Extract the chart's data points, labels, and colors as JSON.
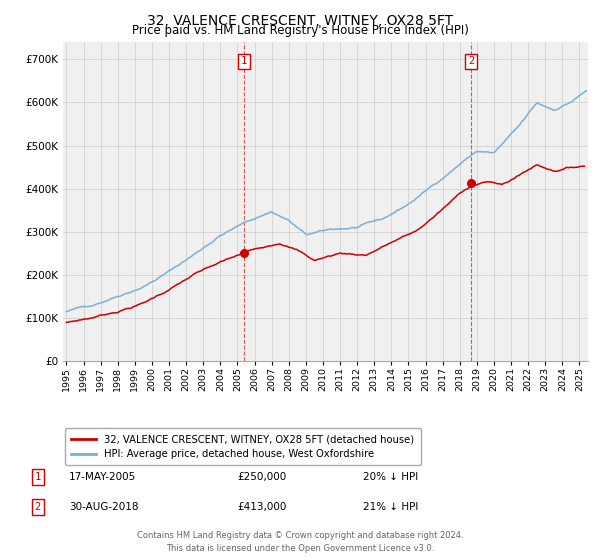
{
  "title": "32, VALENCE CRESCENT, WITNEY, OX28 5FT",
  "subtitle": "Price paid vs. HM Land Registry's House Price Index (HPI)",
  "title_fontsize": 10,
  "subtitle_fontsize": 8.5,
  "ytick_vals": [
    0,
    100000,
    200000,
    300000,
    400000,
    500000,
    600000,
    700000
  ],
  "ylim": [
    0,
    740000
  ],
  "xlim_start": 1994.8,
  "xlim_end": 2025.5,
  "xtick_years": [
    1995,
    1996,
    1997,
    1998,
    1999,
    2000,
    2001,
    2002,
    2003,
    2004,
    2005,
    2006,
    2007,
    2008,
    2009,
    2010,
    2011,
    2012,
    2013,
    2014,
    2015,
    2016,
    2017,
    2018,
    2019,
    2020,
    2021,
    2022,
    2023,
    2024,
    2025
  ],
  "purchase1_x": 2005.38,
  "purchase1_y": 250000,
  "purchase2_x": 2018.66,
  "purchase2_y": 413000,
  "vline1_x": 2005.38,
  "vline2_x": 2018.66,
  "marker_color": "#cc0000",
  "hpi_color": "#7bafd4",
  "price_color": "#cc0000",
  "grid_color": "#cccccc",
  "background_color": "#f0f0f0",
  "legend_label_red": "32, VALENCE CRESCENT, WITNEY, OX28 5FT (detached house)",
  "legend_label_blue": "HPI: Average price, detached house, West Oxfordshire",
  "note1_num": "1",
  "note1_date": "17-MAY-2005",
  "note1_price": "£250,000",
  "note1_hpi": "20% ↓ HPI",
  "note2_num": "2",
  "note2_date": "30-AUG-2018",
  "note2_price": "£413,000",
  "note2_hpi": "21% ↓ HPI",
  "footer": "Contains HM Land Registry data © Crown copyright and database right 2024.\nThis data is licensed under the Open Government Licence v3.0."
}
